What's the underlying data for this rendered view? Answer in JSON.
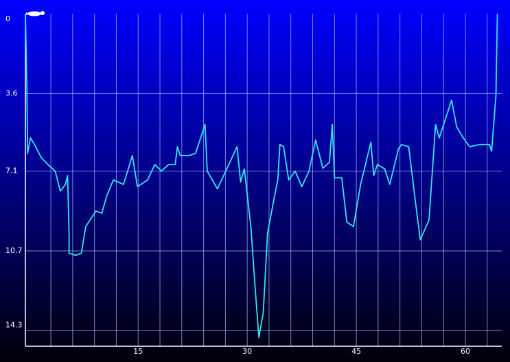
{
  "chart_data": {
    "type": "line",
    "x": [
      -0.5,
      -0.3,
      -0.2,
      0.2,
      0.75,
      1.7,
      2.6,
      3.6,
      4.3,
      5,
      5.3,
      5.5,
      5.5,
      6.4,
      7.2,
      7.8,
      9.2,
      10,
      10.7,
      11.6,
      13,
      14.2,
      14.9,
      16.3,
      17.3,
      18.2,
      19.2,
      20.1,
      20.4,
      20.8,
      22,
      22.9,
      24.2,
      24.5,
      25.9,
      27.2,
      28.6,
      29.1,
      29.6,
      30.5,
      31.1,
      31.6,
      32.2,
      32.8,
      33.6,
      34.2,
      34.5,
      35,
      35.7,
      36.6,
      37.5,
      38.5,
      39.4,
      40.4,
      41.3,
      41.7,
      42,
      43,
      43.7,
      44.6,
      45.6,
      47,
      47.4,
      47.9,
      48.9,
      49.6,
      50.8,
      51.2,
      52.2,
      53.1,
      53.8,
      55,
      55.9,
      56.4,
      57.2,
      58.1,
      58.8,
      59.7,
      60.6,
      62,
      63.3,
      63.6,
      64.2,
      64.4
    ],
    "series": [
      {
        "color": "#33e6f0",
        "values": [
          0,
          3.1,
          6.3,
          5.6,
          5.9,
          6.5,
          6.8,
          7.1,
          8.0,
          7.7,
          7.3,
          9.9,
          10.8,
          10.9,
          10.8,
          9.6,
          8.9,
          9.0,
          8.2,
          7.5,
          7.7,
          6.4,
          7.8,
          7.5,
          6.8,
          7.1,
          6.8,
          6.8,
          6.0,
          6.4,
          6.4,
          6.3,
          5.0,
          7.1,
          7.9,
          7.0,
          6.0,
          7.6,
          7.0,
          9.6,
          12.4,
          14.6,
          13.5,
          9.9,
          8.5,
          7.5,
          5.9,
          6.0,
          7.5,
          7.1,
          7.8,
          7.1,
          5.7,
          6.97,
          6.7,
          5.0,
          7.4,
          7.4,
          9.4,
          9.6,
          7.7,
          5.8,
          7.3,
          6.8,
          7.0,
          7.7,
          6.1,
          5.9,
          6.0,
          8.4,
          10.2,
          9.3,
          5.0,
          5.6,
          4.8,
          3.9,
          5.1,
          5.6,
          6.0,
          5.9,
          5.9,
          6.2,
          3.7,
          0
        ]
      }
    ],
    "xlim": [
      -0.5,
      65
    ],
    "ylim": [
      0,
      15
    ],
    "y_inverted": true,
    "xticks": [
      15,
      30,
      45,
      60
    ],
    "x_minor_ticks": [
      3,
      6,
      9,
      12,
      18,
      21,
      24,
      27,
      33,
      36,
      39,
      42,
      48,
      51,
      54,
      57,
      63
    ],
    "yticks": [
      0,
      3.6,
      7.1,
      10.7,
      14.3
    ],
    "grid": true
  }
}
